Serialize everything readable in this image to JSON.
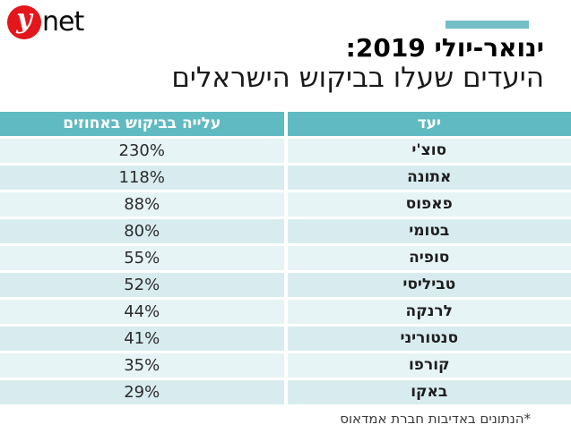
{
  "brand": {
    "logo_y": "y",
    "logo_net": "net"
  },
  "header": {
    "title_line1": "ינואר-יולי 2019:",
    "title_line2": "היעדים שעלו בביקוש הישראלים"
  },
  "table": {
    "columns": {
      "destination": "יעד",
      "increase": "עלייה בביקוש באחוזים"
    },
    "rows": [
      {
        "destination": "סוצ'י",
        "increase": "230%"
      },
      {
        "destination": "אתונה",
        "increase": "118%"
      },
      {
        "destination": "פאפוס",
        "increase": "88%"
      },
      {
        "destination": "בטומי",
        "increase": "80%"
      },
      {
        "destination": "סופיה",
        "increase": "55%"
      },
      {
        "destination": "טביליסי",
        "increase": "52%"
      },
      {
        "destination": "לרנקה",
        "increase": "44%"
      },
      {
        "destination": "סנטוריני",
        "increase": "41%"
      },
      {
        "destination": "קורפו",
        "increase": "35%"
      },
      {
        "destination": "באקו",
        "increase": "29%"
      }
    ]
  },
  "footer": {
    "credit": "*הנתונים באדיבות חברת אמדאוס"
  },
  "colors": {
    "logo_red": "#e3161b",
    "header_teal": "#60bac2",
    "accent_bar_teal": "#74bec5",
    "row_light": "#e7f4f6",
    "row_dark": "#d8ecef"
  },
  "chart_data": {
    "type": "table",
    "title": "ינואר-יולי 2019: היעדים שעלו בביקוש הישראלים",
    "columns": [
      "יעד",
      "עלייה בביקוש באחוזים"
    ],
    "categories": [
      "סוצ'י",
      "אתונה",
      "פאפוס",
      "בטומי",
      "סופיה",
      "טביליסי",
      "לרנקה",
      "סנטוריני",
      "קורפו",
      "באקו"
    ],
    "values": [
      230,
      118,
      88,
      80,
      55,
      52,
      44,
      41,
      35,
      29
    ],
    "value_unit": "%",
    "source_note": "*הנתונים באדיבות חברת אמדאוס"
  }
}
